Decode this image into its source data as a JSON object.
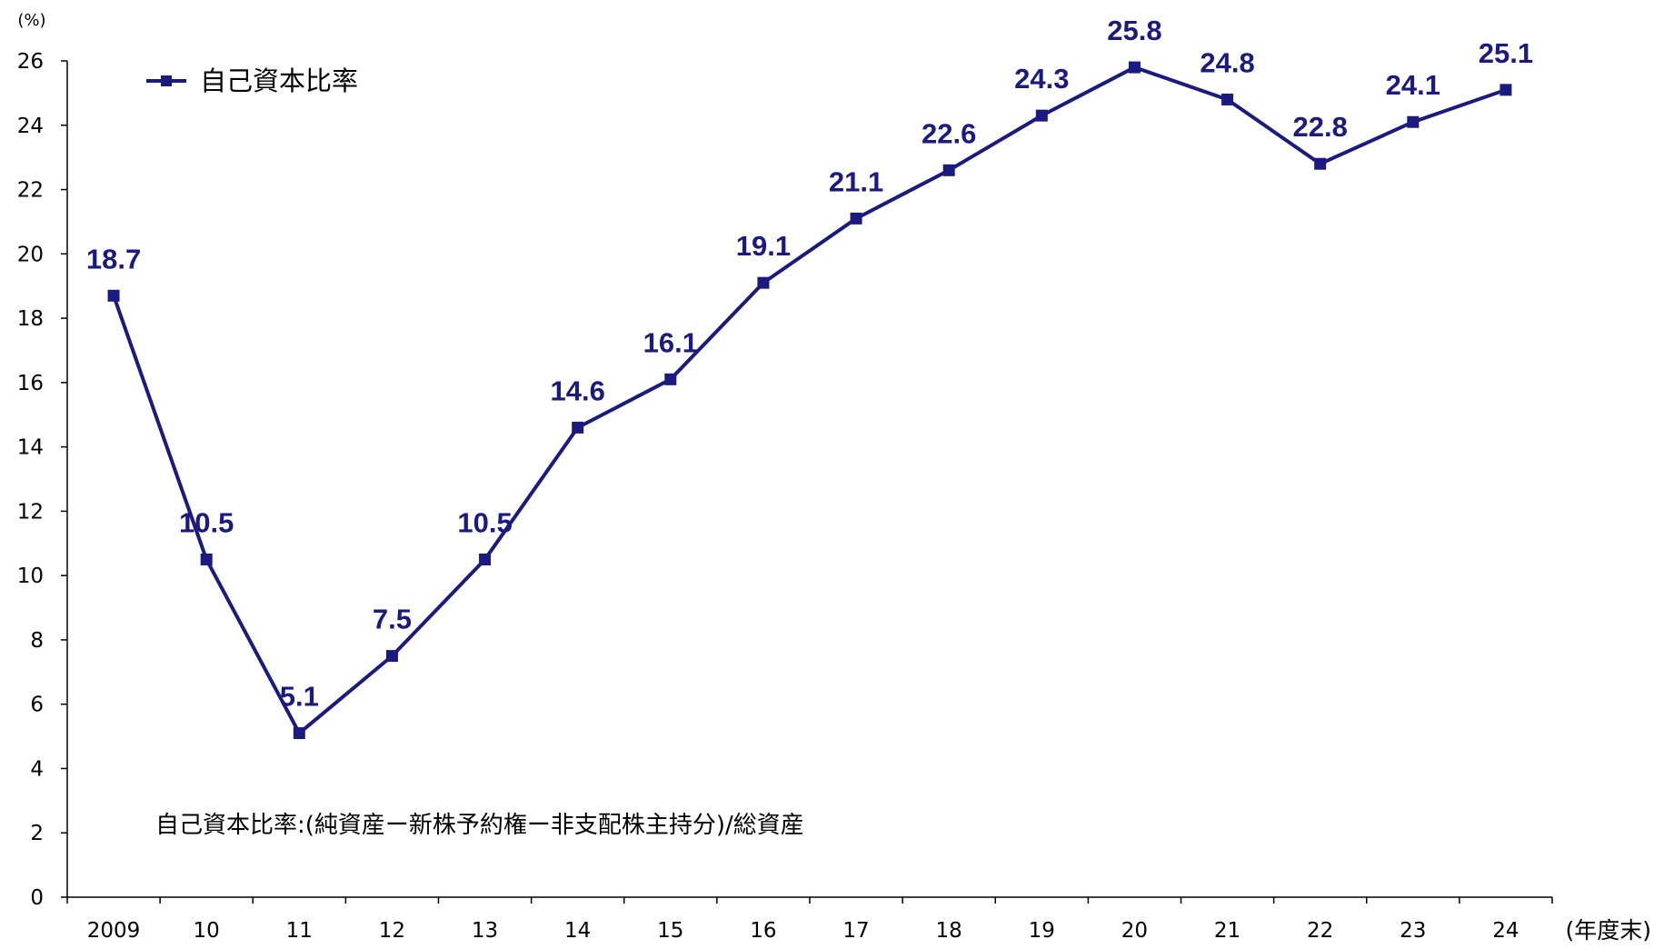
{
  "chart_data": {
    "type": "line",
    "categories": [
      "2009",
      "10",
      "11",
      "12",
      "13",
      "14",
      "15",
      "16",
      "17",
      "18",
      "19",
      "20",
      "21",
      "22",
      "23",
      "24"
    ],
    "series": [
      {
        "name": "自己資本比率",
        "values": [
          18.7,
          10.5,
          5.1,
          7.5,
          10.5,
          14.6,
          16.1,
          19.1,
          21.1,
          22.6,
          24.3,
          25.8,
          24.8,
          22.8,
          24.1,
          25.1
        ],
        "color": "#1a1a80",
        "marker": "square"
      }
    ],
    "data_labels": [
      "18.7",
      "10.5",
      "5.1",
      "7.5",
      "10.5",
      "14.6",
      "16.1",
      "19.1",
      "21.1",
      "22.6",
      "24.3",
      "25.8",
      "24.8",
      "22.8",
      "24.1",
      "25.1"
    ],
    "ylim": [
      0,
      26
    ],
    "yticks": [
      "0",
      "2",
      "4",
      "6",
      "8",
      "10",
      "12",
      "14",
      "16",
      "18",
      "20",
      "22",
      "24",
      "26"
    ],
    "ylabel": "(%)",
    "xlabel": "(年度末)",
    "legend": {
      "position": "top-left"
    },
    "grid": false,
    "annotation": "自己資本比率:(純資産ー新株予約権ー非支配株主持分)/総資産"
  }
}
